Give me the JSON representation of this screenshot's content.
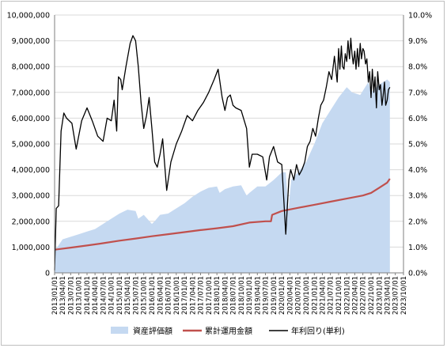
{
  "chart_data": {
    "type": "area-line-combo",
    "x_tick_labels": [
      "2013/01/01",
      "2013/04/01",
      "2013/07/01",
      "2013/10/01",
      "2014/01/01",
      "2014/04/01",
      "2014/07/01",
      "2014/10/01",
      "2015/01/01",
      "2015/04/01",
      "2015/07/01",
      "2015/10/01",
      "2016/01/01",
      "2016/04/01",
      "2016/07/01",
      "2016/10/01",
      "2017/01/01",
      "2017/04/01",
      "2017/07/01",
      "2017/10/01",
      "2018/01/01",
      "2018/04/01",
      "2018/07/01",
      "2018/10/01",
      "2019/01/01",
      "2019/04/01",
      "2019/07/01",
      "2019/10/01",
      "2020/01/01",
      "2020/04/01",
      "2020/07/01",
      "2020/10/01",
      "2021/01/01",
      "2021/04/01",
      "2021/07/01",
      "2021/10/01",
      "2022/01/01",
      "2022/04/01",
      "2022/07/01",
      "2022/10/01",
      "2023/01/01",
      "2023/04/01",
      "2023/07/01",
      "2023/10/01"
    ],
    "y_left_ticks": [
      "0",
      "1,000,000",
      "2,000,000",
      "3,000,000",
      "4,000,000",
      "5,000,000",
      "6,000,000",
      "7,000,000",
      "8,000,000",
      "9,000,000",
      "10,000,000"
    ],
    "y_right_ticks": [
      "0.0%",
      "1.0%",
      "2.0%",
      "3.0%",
      "4.0%",
      "5.0%",
      "6.0%",
      "7.0%",
      "8.0%",
      "9.0%",
      "10.0%"
    ],
    "y_left_range": [
      0,
      10000000
    ],
    "y_right_range": [
      0,
      10
    ],
    "legend_position": "bottom",
    "series": [
      {
        "name": "資産評価額",
        "kind": "area",
        "axis": "left",
        "color": "#c5d9f1",
        "x": [
          "2013/01/01",
          "2013/02/01",
          "2013/04/01",
          "2013/07/01",
          "2013/10/01",
          "2014/01/01",
          "2014/04/01",
          "2014/07/01",
          "2014/10/01",
          "2015/01/01",
          "2015/04/01",
          "2015/07/01",
          "2015/08/01",
          "2015/10/01",
          "2016/01/01",
          "2016/02/01",
          "2016/04/01",
          "2016/07/01",
          "2016/10/01",
          "2017/01/01",
          "2017/04/01",
          "2017/07/01",
          "2017/10/01",
          "2018/01/01",
          "2018/02/01",
          "2018/04/01",
          "2018/07/01",
          "2018/10/01",
          "2018/12/01",
          "2019/01/01",
          "2019/04/01",
          "2019/07/01",
          "2019/10/01",
          "2020/01/01",
          "2020/02/15",
          "2020/03/15",
          "2020/04/15",
          "2020/07/01",
          "2020/10/01",
          "2021/01/01",
          "2021/04/01",
          "2021/07/01",
          "2021/10/01",
          "2022/01/01",
          "2022/03/01",
          "2022/06/01",
          "2022/09/01",
          "2022/10/01",
          "2023/01/01",
          "2023/04/01",
          "2023/05/01"
        ],
        "y": [
          900000,
          1000000,
          1300000,
          1400000,
          1500000,
          1600000,
          1700000,
          1900000,
          2100000,
          2300000,
          2450000,
          2400000,
          2100000,
          2250000,
          1900000,
          2000000,
          2250000,
          2300000,
          2500000,
          2700000,
          2950000,
          3150000,
          3300000,
          3350000,
          3100000,
          3250000,
          3350000,
          3400000,
          3000000,
          3100000,
          3350000,
          3350000,
          3600000,
          3900000,
          3900000,
          2400000,
          3600000,
          3900000,
          4300000,
          5000000,
          5800000,
          6300000,
          6800000,
          7200000,
          7000000,
          6900000,
          7400000,
          7000000,
          7300000,
          7500000,
          7400000
        ]
      },
      {
        "name": "累計運用金額",
        "kind": "line",
        "axis": "left",
        "color": "#c0504d",
        "x": [
          "2013/01/01",
          "2013/07/01",
          "2014/01/01",
          "2014/07/01",
          "2015/01/01",
          "2015/07/01",
          "2016/01/01",
          "2016/07/01",
          "2017/01/01",
          "2017/07/01",
          "2018/01/01",
          "2018/07/01",
          "2019/01/01",
          "2019/07/01",
          "2019/09/01",
          "2019/09/15",
          "2020/01/01",
          "2020/07/01",
          "2021/01/01",
          "2021/07/01",
          "2022/01/01",
          "2022/07/01",
          "2022/10/01",
          "2023/01/01",
          "2023/04/01",
          "2023/05/01"
        ],
        "y": [
          900000,
          980000,
          1060000,
          1150000,
          1250000,
          1330000,
          1420000,
          1500000,
          1580000,
          1660000,
          1730000,
          1810000,
          1950000,
          2000000,
          2000000,
          2250000,
          2400000,
          2520000,
          2640000,
          2760000,
          2880000,
          3000000,
          3100000,
          3300000,
          3500000,
          3650000
        ]
      },
      {
        "name": "年利回り(単利)",
        "kind": "line",
        "axis": "right",
        "color": "#000000",
        "x": [
          "2013/01/01",
          "2013/01/20",
          "2013/02/15",
          "2013/03/15",
          "2013/04/15",
          "2013/05/15",
          "2013/07/15",
          "2013/09/01",
          "2013/11/01",
          "2014/01/01",
          "2014/03/01",
          "2014/05/01",
          "2014/07/01",
          "2014/08/15",
          "2014/10/01",
          "2014/11/01",
          "2014/12/01",
          "2014/12/20",
          "2015/01/15",
          "2015/02/01",
          "2015/03/15",
          "2015/05/01",
          "2015/06/01",
          "2015/07/01",
          "2015/08/01",
          "2015/09/01",
          "2015/10/01",
          "2015/11/01",
          "2015/12/01",
          "2016/01/01",
          "2016/02/01",
          "2016/03/01",
          "2016/04/01",
          "2016/05/01",
          "2016/06/15",
          "2016/08/01",
          "2016/10/01",
          "2016/12/01",
          "2017/02/01",
          "2017/04/01",
          "2017/06/01",
          "2017/08/01",
          "2017/10/01",
          "2017/12/01",
          "2018/01/15",
          "2018/03/01",
          "2018/04/01",
          "2018/05/01",
          "2018/06/01",
          "2018/07/01",
          "2018/08/01",
          "2018/10/01",
          "2018/12/01",
          "2019/01/01",
          "2019/02/01",
          "2019/04/01",
          "2019/06/01",
          "2019/07/15",
          "2019/08/15",
          "2019/10/01",
          "2019/11/15",
          "2020/01/01",
          "2020/02/15",
          "2020/03/20",
          "2020/04/10",
          "2020/05/15",
          "2020/06/15",
          "2020/07/15",
          "2020/08/15",
          "2020/09/15",
          "2020/10/15",
          "2020/11/15",
          "2020/12/15",
          "2021/01/15",
          "2021/02/15",
          "2021/03/15",
          "2021/04/15",
          "2021/05/15",
          "2021/06/15",
          "2021/07/15",
          "2021/08/15",
          "2021/09/15",
          "2021/10/01",
          "2021/10/15",
          "2021/11/01",
          "2021/11/15",
          "2021/12/01",
          "2021/12/15",
          "2022/01/01",
          "2022/01/15",
          "2022/02/01",
          "2022/02/15",
          "2022/03/01",
          "2022/03/15",
          "2022/04/01",
          "2022/04/15",
          "2022/05/01",
          "2022/05/15",
          "2022/06/01",
          "2022/06/15",
          "2022/07/01",
          "2022/07/15",
          "2022/08/01",
          "2022/08/15",
          "2022/09/01",
          "2022/09/15",
          "2022/10/01",
          "2022/10/15",
          "2022/11/01",
          "2022/11/15",
          "2022/12/01",
          "2022/12/15",
          "2023/01/01",
          "2023/01/15",
          "2023/02/01",
          "2023/02/15",
          "2023/03/01",
          "2023/03/15",
          "2023/04/01",
          "2023/04/15",
          "2023/05/01"
        ],
        "y": [
          0.1,
          2.5,
          2.6,
          5.5,
          6.2,
          6.0,
          5.8,
          4.8,
          5.9,
          6.4,
          5.9,
          5.3,
          5.1,
          6.0,
          5.9,
          6.7,
          5.5,
          7.6,
          7.5,
          7.1,
          8.0,
          8.9,
          9.2,
          9.0,
          8.0,
          6.6,
          5.6,
          6.1,
          6.8,
          5.6,
          4.3,
          4.1,
          4.6,
          5.2,
          3.2,
          4.3,
          5.0,
          5.5,
          6.1,
          5.9,
          6.3,
          6.6,
          7.0,
          7.5,
          7.9,
          6.8,
          6.3,
          6.8,
          6.9,
          6.5,
          6.4,
          6.3,
          5.6,
          4.1,
          4.6,
          4.6,
          4.5,
          3.6,
          4.5,
          4.9,
          4.3,
          4.2,
          1.5,
          3.6,
          4.0,
          3.6,
          4.2,
          3.8,
          4.0,
          4.3,
          4.9,
          5.1,
          5.6,
          5.3,
          6.0,
          6.5,
          6.7,
          7.2,
          7.8,
          7.5,
          8.4,
          7.4,
          8.7,
          7.9,
          8.8,
          8.0,
          7.9,
          8.5,
          8.2,
          9.0,
          8.3,
          9.1,
          8.5,
          8.1,
          8.6,
          7.9,
          8.7,
          8.0,
          8.9,
          8.3,
          8.7,
          8.6,
          8.1,
          8.3,
          7.4,
          7.8,
          6.8,
          7.9,
          7.0,
          7.6,
          6.4,
          7.8,
          7.1,
          7.3,
          6.5,
          6.9,
          7.4,
          6.5,
          6.7,
          7.1,
          7.2
        ]
      }
    ]
  }
}
